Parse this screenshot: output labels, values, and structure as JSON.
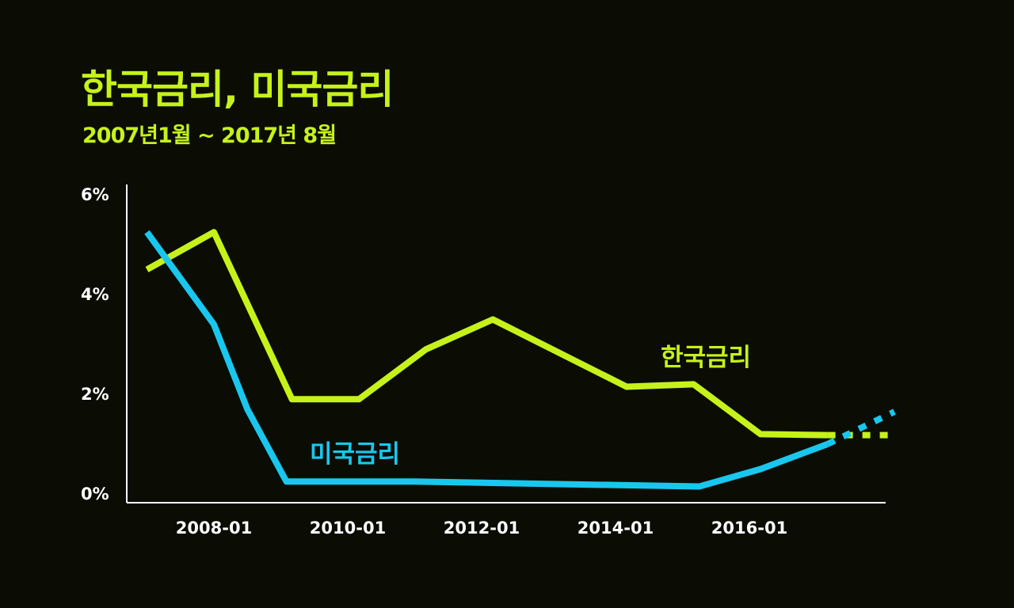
{
  "title": "한국금리, 미국금리",
  "subtitle": "2007년1월 ~ 2017년 8월",
  "colors": {
    "background": "#0b0d04",
    "title": "#c6f21a",
    "korea": "#c6f21a",
    "us": "#19c7ee",
    "axis": "#ffffff"
  },
  "chart_data": {
    "type": "line",
    "xlabel": "",
    "ylabel": "",
    "ylim": [
      0,
      6
    ],
    "xlim": [
      "2007-01",
      "2017-08"
    ],
    "yticks": [
      "0%",
      "2%",
      "4%",
      "6%"
    ],
    "xticks": [
      "2008-01",
      "2010-01",
      "2012-01",
      "2014-01",
      "2016-01"
    ],
    "grid": false,
    "legend": "inline labels",
    "series": [
      {
        "name": "한국금리",
        "color": "#c6f21a",
        "points": [
          [
            "2007-01",
            4.5
          ],
          [
            "2008-01",
            5.25
          ],
          [
            "2009-03",
            1.9
          ],
          [
            "2010-03",
            1.9
          ],
          [
            "2011-03",
            2.9
          ],
          [
            "2012-03",
            3.5
          ],
          [
            "2014-03",
            2.15
          ],
          [
            "2015-03",
            2.2
          ],
          [
            "2016-03",
            1.2
          ],
          [
            "2017-03",
            1.18
          ]
        ],
        "projected": [
          [
            "2017-03",
            1.18
          ],
          [
            "2018-03",
            1.18
          ]
        ]
      },
      {
        "name": "미국금리",
        "color": "#19c7ee",
        "points": [
          [
            "2007-01",
            5.25
          ],
          [
            "2008-01",
            3.4
          ],
          [
            "2008-07",
            1.7
          ],
          [
            "2009-02",
            0.25
          ],
          [
            "2011-01",
            0.25
          ],
          [
            "2015-04",
            0.15
          ],
          [
            "2016-03",
            0.5
          ],
          [
            "2017-03",
            1.0
          ]
        ],
        "projected": [
          [
            "2017-03",
            1.0
          ],
          [
            "2018-03",
            1.65
          ]
        ]
      }
    ]
  }
}
